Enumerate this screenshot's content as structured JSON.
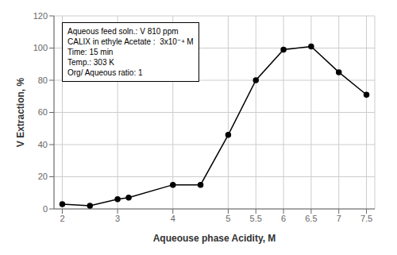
{
  "chart_data": {
    "type": "line",
    "x": [
      2,
      2.5,
      3,
      3.2,
      4,
      4.5,
      5,
      5.5,
      6,
      6.5,
      7,
      7.5
    ],
    "values": [
      3,
      2,
      6,
      7,
      15,
      15,
      46,
      80,
      99,
      101,
      85,
      71
    ],
    "xlabel": "Aqueouse phase Acidity, M",
    "ylabel": "V Extraction, %",
    "xlim": [
      1.85,
      7.65
    ],
    "ylim": [
      0,
      120
    ],
    "xticks": [
      2,
      3,
      4,
      5,
      5.5,
      6,
      6.5,
      7,
      7.5
    ],
    "yticks": [
      0,
      20,
      40,
      60,
      80,
      100,
      120
    ],
    "grid": true,
    "color": "black",
    "marker": "circle",
    "annotations": [
      "Aqueous feed soln.: V 810 ppm",
      "CALIX in ethyle Acetate :  3x10⁻⁴ M",
      "Time: 15 min",
      "Temp.: 303 K",
      "Org/ Aqueous ratio: 1"
    ]
  }
}
